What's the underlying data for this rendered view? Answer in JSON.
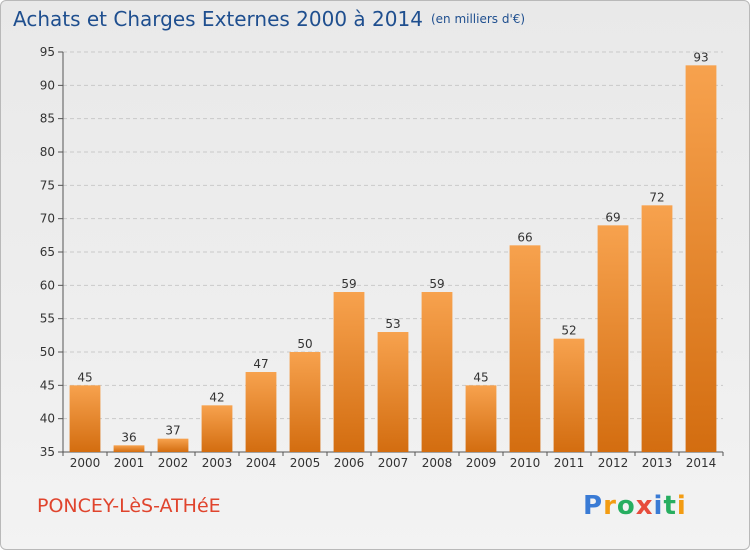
{
  "header": {
    "title": "Achats et Charges Externes 2000 à 2014",
    "unit": "(en milliers d'€)"
  },
  "footer": {
    "commune": "PONCEY-LèS-ATHéE",
    "logo_letters": [
      "P",
      "r",
      "o",
      "x",
      "i",
      "t",
      "i"
    ],
    "logo_colors": [
      "#3a7bd5",
      "#f39c12",
      "#27ae60",
      "#e74c3c",
      "#3a7bd5",
      "#27ae60",
      "#f39c12"
    ]
  },
  "chart_data": {
    "type": "bar",
    "title": "Achats et Charges Externes 2000 à 2014",
    "subtitle": "(en milliers d'€)",
    "xlabel": "",
    "ylabel": "",
    "categories": [
      "2000",
      "2001",
      "2002",
      "2003",
      "2004",
      "2005",
      "2006",
      "2007",
      "2008",
      "2009",
      "2010",
      "2011",
      "2012",
      "2013",
      "2014"
    ],
    "values": [
      45,
      36,
      37,
      42,
      47,
      50,
      59,
      53,
      59,
      45,
      66,
      52,
      69,
      72,
      93
    ],
    "ylim": [
      35,
      95
    ],
    "yticks": [
      35,
      40,
      45,
      50,
      55,
      60,
      65,
      70,
      75,
      80,
      85,
      90,
      95
    ],
    "grid": true,
    "colors": {
      "bar_top": "#f7a24e",
      "bar_bottom": "#d36d10",
      "grid": "#c9c9c9"
    }
  }
}
